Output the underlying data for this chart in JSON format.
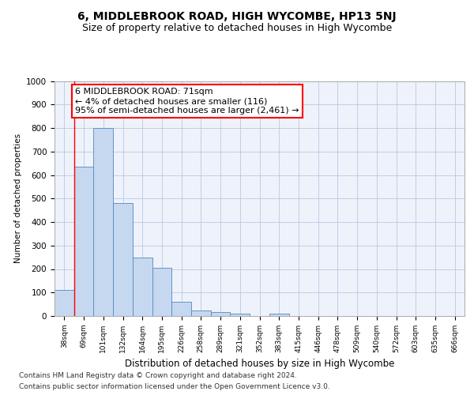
{
  "title": "6, MIDDLEBROOK ROAD, HIGH WYCOMBE, HP13 5NJ",
  "subtitle": "Size of property relative to detached houses in High Wycombe",
  "xlabel": "Distribution of detached houses by size in High Wycombe",
  "ylabel": "Number of detached properties",
  "footer_line1": "Contains HM Land Registry data © Crown copyright and database right 2024.",
  "footer_line2": "Contains public sector information licensed under the Open Government Licence v3.0.",
  "categories": [
    "38sqm",
    "69sqm",
    "101sqm",
    "132sqm",
    "164sqm",
    "195sqm",
    "226sqm",
    "258sqm",
    "289sqm",
    "321sqm",
    "352sqm",
    "383sqm",
    "415sqm",
    "446sqm",
    "478sqm",
    "509sqm",
    "540sqm",
    "572sqm",
    "603sqm",
    "635sqm",
    "666sqm"
  ],
  "values": [
    110,
    635,
    800,
    480,
    250,
    205,
    60,
    25,
    18,
    10,
    0,
    10,
    0,
    0,
    0,
    0,
    0,
    0,
    0,
    0,
    0
  ],
  "bar_color": "#c5d8f0",
  "bar_edge_color": "#5588bb",
  "ylim": [
    0,
    1000
  ],
  "yticks": [
    0,
    100,
    200,
    300,
    400,
    500,
    600,
    700,
    800,
    900,
    1000
  ],
  "red_line_x": 0.5,
  "background_color": "#eef2fb",
  "grid_color": "#b0c0dd",
  "title_fontsize": 10,
  "subtitle_fontsize": 9,
  "annotation_fontsize": 8,
  "annotation_box_text_line1": "6 MIDDLEBROOK ROAD: 71sqm",
  "annotation_box_text_line2": "← 4% of detached houses are smaller (116)",
  "annotation_box_text_line3": "95% of semi-detached houses are larger (2,461) →"
}
